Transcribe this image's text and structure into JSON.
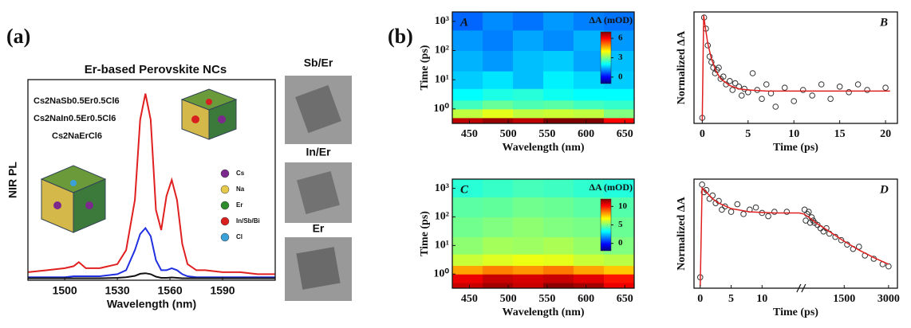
{
  "chart_data": [
    {
      "type": "line",
      "panel_label": "(a)",
      "title": "Er-based Perovskite NCs",
      "xlabel": "Wavelength (nm)",
      "ylabel": "NIR PL",
      "x": [
        1479,
        1490,
        1500,
        1505,
        1508,
        1512,
        1520,
        1530,
        1535,
        1540,
        1543,
        1546,
        1549,
        1552,
        1555,
        1558,
        1561,
        1564,
        1567,
        1570,
        1575,
        1580,
        1590,
        1600,
        1610,
        1620
      ],
      "xlim": [
        1479,
        1620
      ],
      "xticks": [
        1500,
        1530,
        1560,
        1590
      ],
      "ylim": [
        0,
        1
      ],
      "series": [
        {
          "name": "Cs2NaSb0.5Er0.5Cl6",
          "color": "#e02020",
          "values": [
            0.04,
            0.05,
            0.06,
            0.07,
            0.09,
            0.06,
            0.06,
            0.08,
            0.15,
            0.4,
            0.8,
            0.93,
            0.8,
            0.35,
            0.25,
            0.42,
            0.5,
            0.4,
            0.18,
            0.08,
            0.05,
            0.05,
            0.04,
            0.04,
            0.03,
            0.03
          ]
        },
        {
          "name": "Cs2NaIn0.5Er0.5Cl6",
          "color": "#2030e0",
          "values": [
            0.015,
            0.015,
            0.015,
            0.02,
            0.02,
            0.02,
            0.02,
            0.03,
            0.05,
            0.15,
            0.23,
            0.26,
            0.22,
            0.1,
            0.05,
            0.05,
            0.06,
            0.05,
            0.03,
            0.02,
            0.015,
            0.015,
            0.015,
            0.015,
            0.015,
            0.015
          ]
        },
        {
          "name": "Cs2NaErCl6",
          "color": "#111111",
          "values": [
            0.01,
            0.01,
            0.01,
            0.01,
            0.01,
            0.01,
            0.01,
            0.012,
            0.015,
            0.022,
            0.032,
            0.035,
            0.03,
            0.018,
            0.012,
            0.012,
            0.014,
            0.012,
            0.01,
            0.01,
            0.01,
            0.01,
            0.01,
            0.01,
            0.01,
            0.01
          ]
        }
      ],
      "atom_legend": [
        {
          "label": "Cs",
          "color": "#7b2a8c"
        },
        {
          "label": "Na",
          "color": "#e6c84a"
        },
        {
          "label": "Er",
          "color": "#2e8b2e"
        },
        {
          "label": "In/Sb/Bi",
          "color": "#d92020"
        },
        {
          "label": "Cl",
          "color": "#3aa0d8"
        }
      ],
      "tem_images": [
        {
          "label": "Sb/Er",
          "color": "#e02020"
        },
        {
          "label": "In/Er",
          "color": "#2030e0"
        },
        {
          "label": "Er",
          "color": "#111111"
        }
      ]
    },
    {
      "type": "heatmap",
      "panel_label": "(b)",
      "title": "A",
      "xlabel": "Wavelength (nm)",
      "ylabel": "Time (ps)",
      "xbins": [
        428,
        467,
        506,
        545,
        584,
        623,
        662
      ],
      "ybins": [
        0.32,
        0.5,
        1,
        2,
        5,
        20,
        100,
        500,
        2100
      ],
      "values": [
        [
          6.5,
          6.8,
          6.5,
          7,
          7,
          6
        ],
        [
          3.5,
          3.8,
          3.5,
          3.6,
          3.5,
          3
        ],
        [
          2.5,
          2.8,
          2.6,
          2.7,
          2.5,
          2.4
        ],
        [
          2,
          2.2,
          2.3,
          2.1,
          2,
          2
        ],
        [
          1.6,
          1.8,
          1.5,
          1.9,
          1.7,
          1.6
        ],
        [
          1.4,
          1.2,
          1.5,
          1.6,
          1.3,
          1.5
        ],
        [
          1.2,
          1.0,
          1.3,
          1.1,
          1.4,
          1.2
        ],
        [
          0.8,
          1.1,
          0.9,
          1.2,
          1.0,
          0.9
        ]
      ],
      "xlim": [
        428,
        662
      ],
      "xticks": [
        450,
        500,
        550,
        600,
        650
      ],
      "ylim": [
        0.32,
        2100
      ],
      "log_y": true,
      "yticks": [
        {
          "value": 1,
          "label": "10⁰"
        },
        {
          "value": 10,
          "label": "10¹"
        },
        {
          "value": 100,
          "label": "10²"
        },
        {
          "value": 1000,
          "label": "10³"
        }
      ],
      "colormap": "jet",
      "clim": [
        -1,
        7
      ],
      "colorbar_label": "ΔA (mOD)",
      "colorbar_ticks": [
        0,
        3,
        6
      ]
    },
    {
      "type": "scatter",
      "title": "B",
      "xlabel": "Time (ps)",
      "ylabel": "Normalized ΔA",
      "xlim": [
        -0.9,
        21.3
      ],
      "xticks": [
        0,
        5,
        10,
        15,
        20
      ],
      "ylim": [
        0,
        1
      ],
      "series": [
        {
          "mode": "markers",
          "color": "#333333",
          "x": [
            0,
            0.2,
            0.4,
            0.6,
            0.8,
            1,
            1.2,
            1.4,
            1.6,
            1.8,
            2,
            2.3,
            2.6,
            3,
            3.3,
            3.6,
            4,
            4.3,
            4.6,
            5,
            5.5,
            6,
            6.5,
            7,
            7.5,
            8,
            9,
            10,
            11,
            12,
            13,
            14,
            15,
            16,
            17,
            18,
            20
          ],
          "values": [
            0.05,
            0.95,
            0.85,
            0.7,
            0.6,
            0.55,
            0.5,
            0.45,
            0.48,
            0.5,
            0.4,
            0.42,
            0.35,
            0.38,
            0.3,
            0.36,
            0.33,
            0.25,
            0.31,
            0.28,
            0.45,
            0.3,
            0.22,
            0.35,
            0.27,
            0.15,
            0.32,
            0.2,
            0.3,
            0.25,
            0.35,
            0.22,
            0.33,
            0.28,
            0.35,
            0.3,
            0.32
          ]
        },
        {
          "mode": "line",
          "color": "#e02020",
          "x": [
            0,
            0.15,
            0.3,
            0.6,
            1,
            1.5,
            2,
            3,
            4,
            5,
            7,
            10,
            15,
            20.5
          ],
          "values": [
            0.02,
            0.97,
            0.88,
            0.72,
            0.58,
            0.47,
            0.4,
            0.34,
            0.31,
            0.3,
            0.29,
            0.29,
            0.29,
            0.29
          ]
        }
      ]
    },
    {
      "type": "heatmap",
      "title": "C",
      "xlabel": "Wavelength (nm)",
      "ylabel": "Time (ps)",
      "xbins": [
        428,
        467,
        506,
        545,
        584,
        623,
        662
      ],
      "ybins": [
        0.32,
        0.5,
        1,
        2,
        5,
        20,
        100,
        500,
        2100
      ],
      "values": [
        [
          11,
          11.5,
          11,
          11.8,
          11.5,
          10.5
        ],
        [
          10.5,
          11,
          10.8,
          11,
          10.6,
          10
        ],
        [
          8,
          8.5,
          8.2,
          8.6,
          8,
          7.5
        ],
        [
          6,
          6.3,
          6.5,
          6.4,
          6,
          5.8
        ],
        [
          5.2,
          5.5,
          5.4,
          5.6,
          5.3,
          5
        ],
        [
          4.8,
          5,
          5.2,
          5,
          4.9,
          4.7
        ],
        [
          4.5,
          4.6,
          4.8,
          4.7,
          4.5,
          4.4
        ],
        [
          3.8,
          4,
          4.2,
          4.1,
          3.9,
          3.7
        ]
      ],
      "xlim": [
        428,
        662
      ],
      "xticks": [
        450,
        500,
        550,
        600,
        650
      ],
      "ylim": [
        0.32,
        2100
      ],
      "log_y": true,
      "yticks": [
        {
          "value": 1,
          "label": "10⁰"
        },
        {
          "value": 10,
          "label": "10¹"
        },
        {
          "value": 100,
          "label": "10²"
        },
        {
          "value": 1000,
          "label": "10³"
        }
      ],
      "colormap": "jet",
      "clim": [
        -2,
        12
      ],
      "colorbar_label": "ΔA (mOD)",
      "colorbar_ticks": [
        0,
        5,
        10
      ]
    },
    {
      "type": "scatter",
      "title": "D",
      "xlabel": "Time (ps)",
      "ylabel": "Normalized ΔA",
      "xlim": [
        -1,
        3300
      ],
      "xbreak": [
        16,
        140
      ],
      "xticks": [
        0,
        5,
        10,
        1500,
        3000
      ],
      "ylim": [
        0,
        1
      ],
      "series": [
        {
          "mode": "markers",
          "color": "#333333",
          "x": [
            0,
            0.3,
            0.6,
            1,
            1.5,
            2,
            2.5,
            3,
            3.5,
            4,
            5,
            6,
            7,
            8,
            9,
            10,
            11,
            12,
            14,
            160,
            200,
            250,
            300,
            350,
            400,
            450,
            500,
            600,
            700,
            800,
            900,
            1000,
            1200,
            1400,
            1600,
            1800,
            2000,
            2200,
            2500,
            2800,
            3000
          ],
          "values": [
            0.1,
            0.95,
            0.88,
            0.9,
            0.82,
            0.85,
            0.78,
            0.8,
            0.72,
            0.75,
            0.7,
            0.77,
            0.68,
            0.72,
            0.74,
            0.69,
            0.66,
            0.7,
            0.7,
            0.72,
            0.62,
            0.68,
            0.7,
            0.6,
            0.65,
            0.62,
            0.6,
            0.58,
            0.55,
            0.52,
            0.55,
            0.5,
            0.47,
            0.44,
            0.4,
            0.36,
            0.38,
            0.3,
            0.27,
            0.22,
            0.2
          ]
        },
        {
          "mode": "line",
          "color": "#e02020",
          "x": [
            0,
            0.3,
            1,
            2,
            3,
            5,
            8,
            12,
            16,
            140,
            300,
            600,
            1000,
            1500,
            2000,
            2500,
            3000
          ],
          "values": [
            0.02,
            0.92,
            0.88,
            0.82,
            0.78,
            0.73,
            0.7,
            0.69,
            0.69,
            0.68,
            0.65,
            0.59,
            0.52,
            0.43,
            0.35,
            0.28,
            0.22
          ]
        }
      ]
    }
  ]
}
